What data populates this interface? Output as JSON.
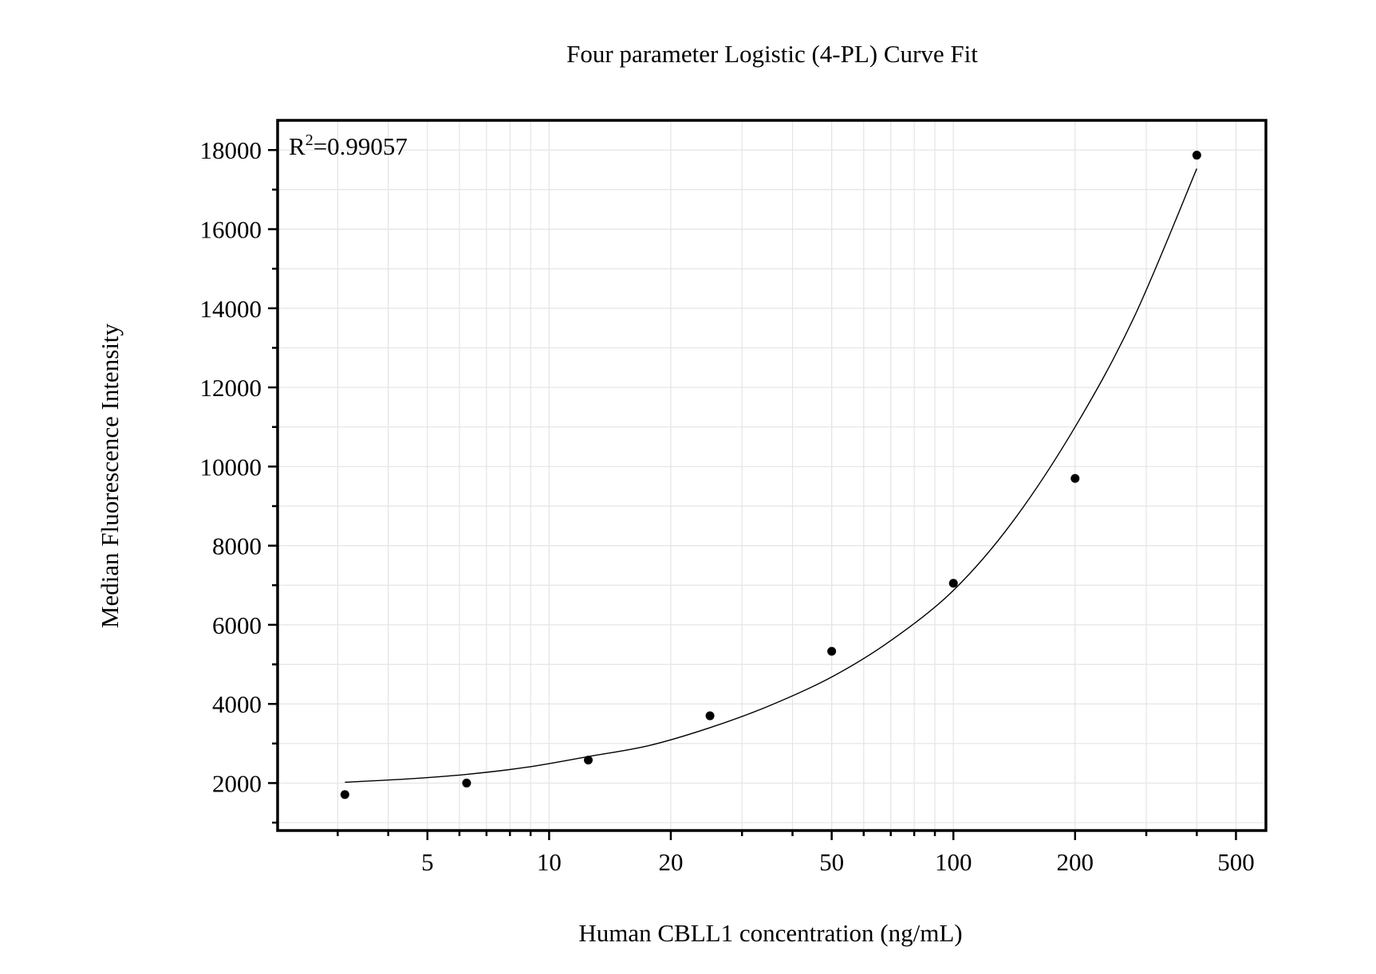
{
  "chart_data": {
    "type": "scatter",
    "title": "Four parameter Logistic (4-PL) Curve Fit",
    "x_label": "Human CBLL1 concentration (ng/mL)",
    "y_label": "Median Fluorescence Intensity",
    "annotation": {
      "base": "R",
      "sup": "2",
      "text": "=0.99057"
    },
    "x_log": true,
    "grid": true,
    "xlim": [
      2.13,
      593
    ],
    "ylim": [
      800,
      18750
    ],
    "xticks": [
      5,
      10,
      20,
      50,
      100,
      200,
      500
    ],
    "xminor_ticks": [
      3,
      4,
      6,
      7,
      8,
      9,
      30,
      40,
      60,
      70,
      80,
      90,
      300,
      400
    ],
    "yticks": [
      2000,
      4000,
      6000,
      8000,
      10000,
      12000,
      14000,
      16000,
      18000
    ],
    "yminor_ticks": [
      1000,
      3000,
      5000,
      7000,
      9000,
      11000,
      13000,
      15000,
      17000
    ],
    "series": [
      {
        "style": "points",
        "color": "#000000",
        "x": [
          3.125,
          6.25,
          12.5,
          25,
          50,
          100,
          200,
          400
        ],
        "values": [
          1710,
          2000,
          2580,
          3700,
          5330,
          7050,
          9700,
          17870
        ]
      },
      {
        "style": "line",
        "color": "#000000",
        "x": [
          3.125,
          4.4,
          6.25,
          8.8,
          12.5,
          17.7,
          25,
          35,
          50,
          70,
          100,
          140,
          200,
          280,
          400
        ],
        "values": [
          2020,
          2100,
          2220,
          2400,
          2670,
          2950,
          3400,
          3950,
          4680,
          5600,
          6870,
          8600,
          11000,
          13780,
          17530
        ]
      }
    ]
  }
}
